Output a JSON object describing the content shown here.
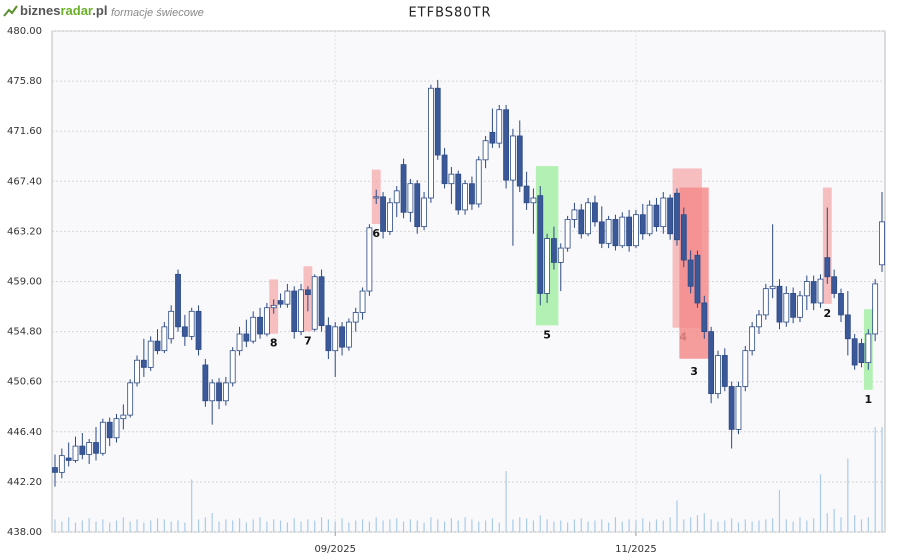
{
  "header": {
    "logo": [
      "biznes",
      "radar",
      ".pl"
    ],
    "subtitle": "formacje świecowe"
  },
  "chart_data": {
    "type": "candlestick",
    "title": "ETFBS80TR",
    "up_color": "#ffffff",
    "down_color": "#3b5998",
    "volume_color": "#a9cbe8",
    "grid": true,
    "ylim": [
      438,
      480
    ],
    "yticks": [
      {
        "value": 438,
        "label": "438.00"
      },
      {
        "value": 442.2,
        "label": "442.20"
      },
      {
        "value": 446.4,
        "label": "446.40"
      },
      {
        "value": 450.6,
        "label": "450.60"
      },
      {
        "value": 454.8,
        "label": "454.80"
      },
      {
        "value": 459,
        "label": "459.00"
      },
      {
        "value": 463.2,
        "label": "463.20"
      },
      {
        "value": 467.4,
        "label": "467.40"
      },
      {
        "value": 471.6,
        "label": "471.60"
      },
      {
        "value": 475.8,
        "label": "475.80"
      },
      {
        "value": 480,
        "label": "480.00"
      }
    ],
    "xlim": [
      0,
      121
    ],
    "xticks": [
      {
        "value": 41,
        "label": "09/2025"
      },
      {
        "value": 85,
        "label": "11/2025"
      }
    ],
    "candles": [
      [
        443.4,
        444.5,
        441.8,
        443.0
      ],
      [
        443.0,
        445.0,
        442.5,
        444.4
      ],
      [
        444.2,
        445.5,
        443.5,
        444.0
      ],
      [
        444.0,
        446.0,
        443.8,
        445.2
      ],
      [
        445.2,
        446.3,
        444.1,
        444.5
      ],
      [
        444.5,
        445.8,
        443.7,
        445.5
      ],
      [
        445.5,
        446.8,
        444.0,
        444.6
      ],
      [
        444.6,
        447.5,
        444.4,
        447.2
      ],
      [
        447.2,
        447.6,
        445.2,
        445.9
      ],
      [
        445.9,
        447.9,
        445.5,
        447.5
      ],
      [
        447.5,
        448.7,
        446.6,
        447.8
      ],
      [
        447.8,
        450.8,
        447.6,
        450.5
      ],
      [
        450.5,
        452.8,
        450.2,
        452.4
      ],
      [
        452.4,
        454.2,
        451.0,
        451.8
      ],
      [
        451.8,
        454.4,
        451.5,
        454.0
      ],
      [
        454.0,
        455.0,
        452.9,
        453.2
      ],
      [
        453.2,
        455.6,
        453.0,
        455.2
      ],
      [
        454.2,
        457.0,
        453.8,
        456.5
      ],
      [
        459.6,
        460.0,
        454.8,
        455.2
      ],
      [
        455.2,
        456.2,
        453.6,
        454.4
      ],
      [
        454.4,
        456.8,
        454.1,
        456.5
      ],
      [
        456.5,
        457.0,
        452.8,
        453.3
      ],
      [
        452.0,
        452.5,
        448.5,
        449.0
      ],
      [
        449.0,
        450.8,
        447.0,
        450.5
      ],
      [
        450.5,
        450.9,
        448.3,
        449.0
      ],
      [
        449.0,
        451.0,
        448.6,
        450.5
      ],
      [
        450.5,
        453.5,
        450.2,
        453.2
      ],
      [
        453.2,
        455.2,
        452.8,
        454.6
      ],
      [
        454.6,
        455.8,
        453.5,
        454.0
      ],
      [
        454.0,
        456.5,
        453.8,
        456.0
      ],
      [
        456.0,
        456.8,
        454.2,
        454.6
      ],
      [
        454.6,
        457.2,
        454.4,
        456.8
      ],
      [
        456.8,
        457.5,
        456.3,
        457.0
      ],
      [
        457.4,
        458.0,
        456.8,
        457.1
      ],
      [
        457.1,
        458.8,
        456.8,
        458.2
      ],
      [
        458.2,
        458.6,
        454.2,
        454.8
      ],
      [
        454.8,
        458.8,
        454.5,
        458.3
      ],
      [
        458.3,
        458.6,
        456.5,
        457.9
      ],
      [
        455.0,
        459.6,
        454.8,
        459.4
      ],
      [
        459.4,
        460.0,
        454.8,
        455.3
      ],
      [
        455.3,
        456.0,
        452.5,
        453.2
      ],
      [
        453.2,
        455.6,
        451.0,
        455.2
      ],
      [
        455.2,
        455.6,
        452.8,
        453.5
      ],
      [
        453.5,
        455.9,
        453.2,
        455.6
      ],
      [
        455.6,
        456.8,
        454.8,
        456.4
      ],
      [
        456.4,
        458.5,
        455.8,
        458.2
      ],
      [
        458.2,
        463.8,
        457.8,
        463.5
      ],
      [
        466.0,
        466.7,
        465.5,
        466.1
      ],
      [
        466.1,
        466.5,
        462.6,
        463.2
      ],
      [
        463.2,
        466.0,
        462.9,
        465.6
      ],
      [
        465.6,
        467.0,
        464.4,
        466.6
      ],
      [
        468.8,
        469.3,
        464.3,
        464.8
      ],
      [
        464.8,
        467.6,
        464.0,
        467.2
      ],
      [
        467.2,
        467.5,
        463.0,
        463.6
      ],
      [
        463.6,
        466.5,
        463.3,
        466.0
      ],
      [
        466.0,
        475.5,
        465.6,
        475.2
      ],
      [
        475.2,
        475.9,
        469.2,
        469.6
      ],
      [
        469.6,
        470.2,
        466.8,
        467.2
      ],
      [
        467.2,
        468.6,
        465.5,
        468.0
      ],
      [
        468.0,
        468.3,
        464.6,
        465.0
      ],
      [
        465.0,
        467.5,
        464.6,
        467.2
      ],
      [
        467.2,
        467.8,
        465.0,
        465.5
      ],
      [
        465.5,
        469.5,
        465.2,
        469.2
      ],
      [
        469.2,
        471.2,
        468.5,
        470.8
      ],
      [
        471.5,
        473.5,
        470.2,
        470.6
      ],
      [
        470.6,
        473.8,
        470.2,
        473.4
      ],
      [
        473.4,
        473.8,
        466.8,
        467.5
      ],
      [
        467.5,
        471.8,
        462.0,
        471.2
      ],
      [
        471.2,
        472.5,
        466.5,
        467.0
      ],
      [
        467.0,
        468.2,
        465.0,
        465.6
      ],
      [
        465.6,
        466.8,
        463.0,
        466.0
      ],
      [
        466.2,
        467.0,
        457.0,
        458.0
      ],
      [
        458.0,
        463.0,
        457.2,
        462.6
      ],
      [
        462.6,
        463.6,
        460.0,
        460.6
      ],
      [
        460.6,
        462.2,
        458.2,
        461.8
      ],
      [
        461.8,
        464.5,
        461.5,
        464.2
      ],
      [
        464.2,
        465.6,
        463.5,
        465.0
      ],
      [
        465.0,
        465.5,
        462.6,
        463.0
      ],
      [
        463.0,
        466.0,
        462.8,
        465.6
      ],
      [
        465.6,
        466.2,
        463.6,
        464.0
      ],
      [
        464.0,
        465.3,
        461.8,
        462.2
      ],
      [
        462.2,
        464.5,
        461.8,
        464.2
      ],
      [
        464.2,
        464.6,
        461.6,
        462.0
      ],
      [
        462.0,
        464.8,
        461.8,
        464.4
      ],
      [
        464.4,
        465.0,
        461.5,
        462.0
      ],
      [
        462.0,
        465.0,
        461.8,
        464.6
      ],
      [
        464.6,
        465.5,
        462.5,
        463.0
      ],
      [
        463.0,
        465.8,
        462.8,
        465.4
      ],
      [
        465.4,
        466.0,
        463.2,
        463.6
      ],
      [
        463.6,
        466.5,
        463.0,
        466.0
      ],
      [
        466.0,
        466.3,
        462.5,
        463.0
      ],
      [
        466.4,
        466.8,
        462.0,
        462.5
      ],
      [
        464.6,
        465.2,
        460.2,
        460.8
      ],
      [
        460.8,
        461.6,
        458.0,
        458.6
      ],
      [
        461.2,
        461.6,
        456.8,
        457.2
      ],
      [
        457.2,
        457.8,
        454.2,
        454.8
      ],
      [
        454.8,
        455.2,
        448.8,
        449.6
      ],
      [
        449.6,
        453.2,
        449.2,
        452.8
      ],
      [
        452.8,
        453.4,
        449.8,
        450.2
      ],
      [
        450.2,
        450.6,
        445.0,
        446.6
      ],
      [
        446.6,
        450.6,
        446.2,
        450.2
      ],
      [
        450.2,
        453.6,
        449.8,
        453.2
      ],
      [
        453.2,
        455.6,
        452.8,
        455.2
      ],
      [
        455.2,
        456.6,
        454.6,
        456.2
      ],
      [
        456.2,
        458.8,
        455.8,
        458.4
      ],
      [
        458.4,
        463.8,
        457.6,
        458.6
      ],
      [
        458.6,
        459.2,
        455.0,
        455.6
      ],
      [
        455.6,
        458.6,
        455.2,
        458.0
      ],
      [
        458.0,
        458.5,
        455.5,
        456.0
      ],
      [
        456.0,
        458.2,
        455.6,
        457.8
      ],
      [
        457.8,
        459.5,
        456.6,
        459.0
      ],
      [
        459.0,
        459.5,
        456.6,
        457.2
      ],
      [
        457.2,
        459.6,
        456.8,
        459.2
      ],
      [
        461.0,
        465.2,
        458.8,
        459.4
      ],
      [
        459.4,
        460.0,
        457.6,
        458.0
      ],
      [
        458.0,
        458.4,
        455.6,
        456.2
      ],
      [
        456.2,
        458.2,
        452.8,
        454.2
      ],
      [
        454.2,
        454.6,
        451.6,
        452.0
      ],
      [
        453.8,
        454.2,
        451.8,
        452.2
      ],
      [
        452.2,
        455.0,
        451.6,
        454.6
      ],
      [
        454.6,
        459.2,
        454.0,
        458.8
      ],
      [
        460.4,
        466.5,
        459.8,
        464.0
      ]
    ],
    "volume": [
      12,
      10,
      14,
      9,
      11,
      13,
      10,
      12,
      9,
      11,
      14,
      10,
      12,
      9,
      11,
      13,
      12,
      10,
      11,
      9,
      50,
      12,
      14,
      18,
      10,
      12,
      11,
      13,
      9,
      12,
      14,
      10,
      12,
      11,
      9,
      13,
      10,
      12,
      11,
      14,
      12,
      10,
      13,
      9,
      11,
      12,
      10,
      14,
      11,
      12,
      13,
      10,
      12,
      11,
      9,
      14,
      12,
      10,
      13,
      11,
      14,
      12,
      10,
      11,
      13,
      9,
      58,
      12,
      14,
      13,
      11,
      16,
      12,
      10,
      11,
      9,
      12,
      13,
      10,
      11,
      12,
      9,
      14,
      10,
      12,
      11,
      13,
      10,
      12,
      11,
      14,
      30,
      12,
      14,
      16,
      18,
      12,
      10,
      11,
      13,
      9,
      12,
      10,
      11,
      12,
      13,
      40,
      12,
      10,
      14,
      11,
      13,
      55,
      18,
      22,
      14,
      70,
      16,
      12,
      14,
      100,
      100
    ],
    "patterns": [
      {
        "label": "8",
        "start": 32,
        "end": 32,
        "color": "#f7b4b4"
      },
      {
        "label": "7",
        "start": 37,
        "end": 37,
        "color": "#f7b4b4"
      },
      {
        "label": "6",
        "start": 47,
        "end": 47,
        "color": "#f7b4b4"
      },
      {
        "label": "5",
        "start": 71,
        "end": 73,
        "color": "#a6f0a6"
      },
      {
        "label": "4",
        "start": 91,
        "end": 94,
        "color": "#f7b4b4"
      },
      {
        "label": "3",
        "start": 92,
        "end": 95,
        "color": "#f48c8c"
      },
      {
        "label": "2",
        "start": 113,
        "end": 113,
        "color": "#f7b4b4"
      },
      {
        "label": "1",
        "start": 119,
        "end": 119,
        "color": "#a6f0a6"
      }
    ]
  }
}
